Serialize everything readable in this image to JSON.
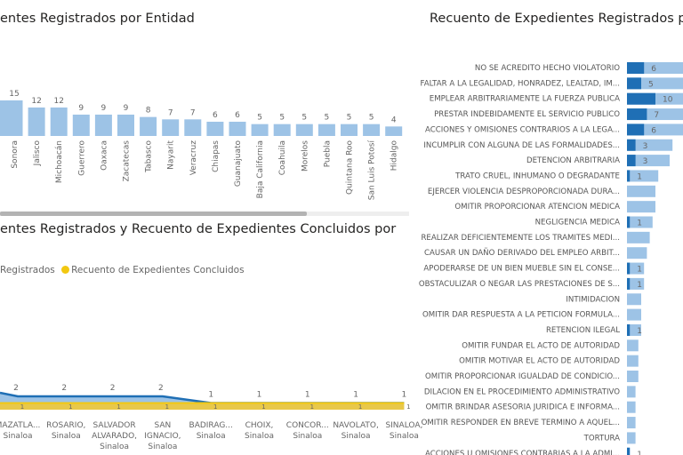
{
  "chart_data": [
    {
      "type": "bar",
      "title": "entes Registrados por Entidad",
      "categories": [
        "Sonora",
        "Jalisco",
        "Michoacán",
        "Guerrero",
        "Oaxaca",
        "Zacatecas",
        "Tabasco",
        "Nayarit",
        "Veracruz",
        "Chiapas",
        "Guanajuato",
        "Baja California",
        "Coahuila",
        "Morelos",
        "Puebla",
        "Quintana Roo",
        "San Luis Potosí",
        "Hidalgo"
      ],
      "values": [
        15,
        12,
        12,
        9,
        9,
        9,
        8,
        7,
        7,
        6,
        6,
        5,
        5,
        5,
        5,
        5,
        5,
        4
      ],
      "color": "#9DC3E6"
    },
    {
      "type": "area",
      "title": "entes Registrados y Recuento de Expedientes Concluidos por",
      "legend": [
        "Registrados",
        "Recuento de Expedientes Concluidos"
      ],
      "categories": [
        [
          "MAZATLA...",
          "Sinaloa"
        ],
        [
          "ROSARIO,",
          "Sinaloa"
        ],
        [
          "SALVADOR",
          "ALVARADO,",
          "Sinaloa"
        ],
        [
          "SAN",
          "IGNACIO,",
          "Sinaloa"
        ],
        [
          "BADIRAG...",
          "Sinaloa"
        ],
        [
          "CHOIX,",
          "Sinaloa"
        ],
        [
          "CONCOR...",
          "Sinaloa"
        ],
        [
          "NAVOLATO,",
          "Sinaloa"
        ],
        [
          "SINALOA,",
          "Sinaloa"
        ]
      ],
      "series": [
        {
          "name": "Registrados",
          "values": [
            2,
            2,
            2,
            2,
            1,
            1,
            1,
            1,
            1
          ],
          "color": "#1F6FB5"
        },
        {
          "name": "Recuento de Expedientes Concluidos",
          "values": [
            1,
            1,
            1,
            1,
            1,
            1,
            1,
            1,
            1
          ],
          "color": "#F2C811"
        }
      ]
    },
    {
      "type": "bar",
      "orientation": "horizontal",
      "title": "Recuento de Expedientes Registrados po",
      "categories": [
        "NO SE ACREDITO HECHO VIOLATORIO",
        "FALTAR A LA LEGALIDAD, HONRADEZ, LEALTAD, IM...",
        "EMPLEAR ARBITRARIAMENTE LA FUERZA PUBLICA",
        "PRESTAR INDEBIDAMENTE EL SERVICIO PUBLICO",
        "ACCIONES Y OMISIONES CONTRARIOS A LA LEGA...",
        "INCUMPLIR CON ALGUNA DE LAS FORMALIDADES...",
        "DETENCION ARBITRARIA",
        "TRATO CRUEL, INHUMANO O DEGRADANTE",
        "EJERCER VIOLENCIA DESPROPORCIONADA DURA...",
        "OMITIR PROPORCIONAR ATENCION MEDICA",
        "NEGLIGENCIA MEDICA",
        "REALIZAR DEFICIENTEMENTE LOS TRAMITES MEDI...",
        "CAUSAR UN DAÑO DERIVADO DEL EMPLEO ARBIT...",
        "APODERARSE DE UN BIEN MUEBLE SIN EL CONSE...",
        "OBSTACULIZAR O NEGAR LAS PRESTACIONES DE S...",
        "INTIMIDACION",
        "OMITIR DAR RESPUESTA A LA PETICION FORMULA...",
        "RETENCION ILEGAL",
        "OMITIR FUNDAR EL ACTO DE AUTORIDAD",
        "OMITIR MOTIVAR EL ACTO DE AUTORIDAD",
        "OMITIR PROPORCIONAR IGUALDAD DE CONDICIO...",
        "DILACION EN EL PROCEDIMIENTO ADMINISTRATIVO",
        "OMITIR BRINDAR ASESORIA JURIDICA E INFORMA...",
        "OMITIR RESPONDER EN BREVE TERMINO A AQUEL...",
        "TORTURA",
        "ACCIONES U OMISIONES CONTRARIAS A LA ADMI..."
      ],
      "series": [
        {
          "name": "Registrados",
          "values": [
            25,
            25,
            25,
            25,
            25,
            16,
            15,
            11,
            10,
            10,
            9,
            8,
            7,
            6,
            6,
            5,
            5,
            5,
            4,
            4,
            4,
            3,
            3,
            3,
            3,
            1
          ],
          "color": "#9DC3E6"
        },
        {
          "name": "Concluidos",
          "values": [
            6,
            5,
            10,
            7,
            6,
            3,
            3,
            1,
            null,
            null,
            1,
            null,
            null,
            1,
            1,
            null,
            null,
            1,
            null,
            null,
            null,
            null,
            null,
            null,
            null,
            1
          ],
          "color": "#1F6FB5"
        }
      ]
    }
  ]
}
